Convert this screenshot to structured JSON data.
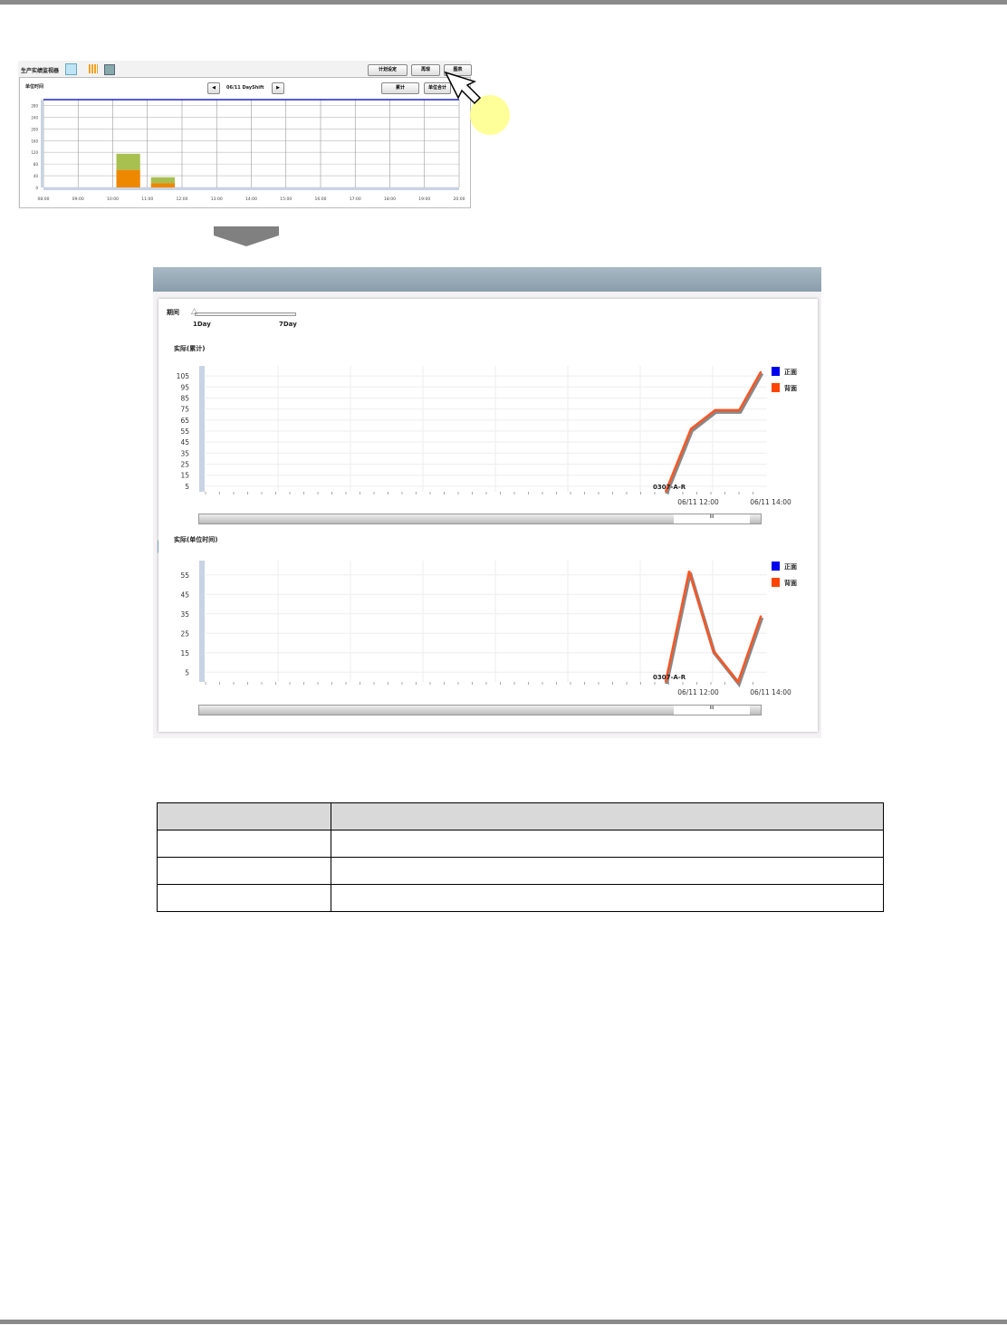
{
  "monitor": {
    "title": "生产实绩监视器",
    "buttons": [
      "计划设定",
      "再现",
      "图表"
    ],
    "unit_label": "单位时间",
    "nav_label": "06/11 DayShift",
    "buttons2": [
      "累计",
      "单位合计"
    ]
  },
  "detail": {
    "tabs": [
      "F",
      "R"
    ],
    "period_label": "期间",
    "slider_min": "1Day",
    "slider_max": "7Day",
    "slider_value": "1Day",
    "chart1_title": "实际(累计)",
    "chart2_title": "实际(单位时间)",
    "legend": [
      {
        "name": "正面",
        "color": "#0000ee"
      },
      {
        "name": "背面",
        "color": "#ff4400"
      }
    ],
    "annotation": "0307-A-R",
    "scroll_thumb": "III"
  },
  "chart_data": [
    {
      "type": "bar",
      "stacked": true,
      "categories": [
        "08:00",
        "09:00",
        "10:00",
        "11:00",
        "12:00",
        "13:00",
        "14:00",
        "15:00",
        "16:00",
        "17:00",
        "18:00",
        "19:00"
      ],
      "xticks": [
        "08:00",
        "09:00",
        "10:00",
        "11:00",
        "12:00",
        "13:00",
        "14:00",
        "15:00",
        "16:00",
        "17:00",
        "18:00",
        "19:00",
        "20:00"
      ],
      "yticks": [
        0,
        40,
        80,
        120,
        160,
        200,
        240,
        280
      ],
      "ylim": [
        0,
        300
      ],
      "series": [
        {
          "color": "#ee8800",
          "values": [
            0,
            0,
            60,
            15,
            0,
            0,
            0,
            0,
            0,
            0,
            0,
            0
          ]
        },
        {
          "color": "#a8c050",
          "values": [
            0,
            0,
            55,
            20,
            0,
            0,
            0,
            0,
            0,
            0,
            0,
            0
          ]
        }
      ],
      "target_line": 300
    },
    {
      "type": "line",
      "xticks": [
        "06/11 12:00",
        "06/11 14:00"
      ],
      "yticks": [
        5,
        15,
        25,
        35,
        45,
        55,
        65,
        75,
        85,
        95,
        105
      ],
      "ylim": [
        0,
        110
      ],
      "x": [
        "11:06",
        "11:48",
        "12:28",
        "13:08",
        "13:44"
      ],
      "y": [
        0,
        57,
        74,
        74,
        109
      ]
    },
    {
      "type": "line",
      "xticks": [
        "06/11 12:00",
        "06/11 14:00"
      ],
      "yticks": [
        5,
        15,
        25,
        35,
        45,
        55
      ],
      "ylim": [
        0,
        60
      ],
      "x": [
        "11:06",
        "11:45",
        "12:25",
        "13:06",
        "13:44"
      ],
      "y": [
        0,
        57,
        16,
        0,
        34
      ]
    }
  ],
  "table": {
    "rows": [
      [
        "",
        ""
      ],
      [
        "",
        ""
      ],
      [
        "",
        ""
      ],
      [
        "",
        ""
      ]
    ]
  }
}
